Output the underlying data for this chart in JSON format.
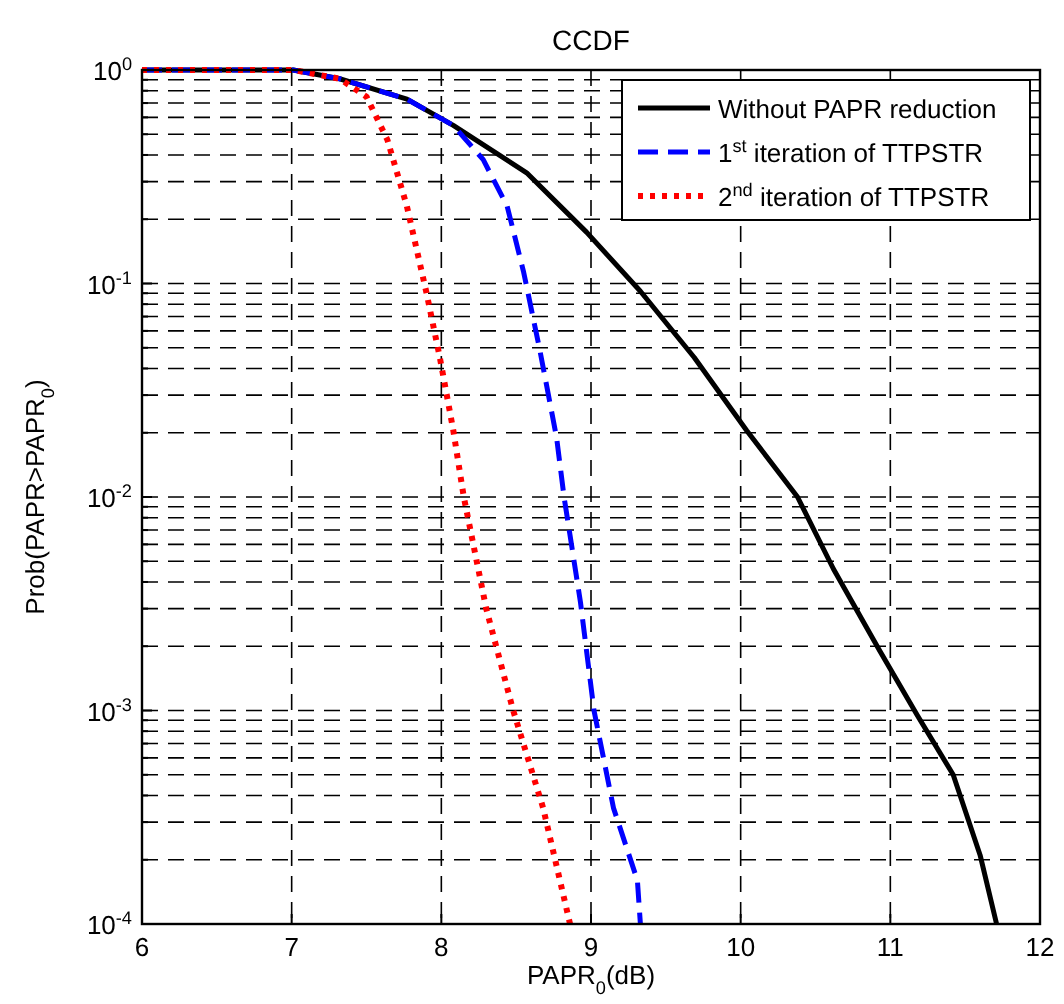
{
  "chart_data": {
    "type": "line",
    "title": "CCDF",
    "xlabel": "PAPR$_{0}$(dB)",
    "ylabel": "Prob(PAPR>PAPR$_{0}$)",
    "log": "y",
    "grid": true,
    "legend": "top right",
    "xlim": [
      6,
      12
    ],
    "xticks": [
      6,
      7,
      8,
      9,
      10,
      11,
      12
    ],
    "ylim": [
      0.0001,
      1
    ],
    "yticks": [
      {
        "value": 0.0001,
        "label": "10$^{-4}$"
      },
      {
        "value": 0.0002,
        "label": null
      },
      {
        "value": 0.0003,
        "label": null
      },
      {
        "value": 0.0004,
        "label": null
      },
      {
        "value": 0.0005,
        "label": null
      },
      {
        "value": 0.0006,
        "label": null
      },
      {
        "value": 0.0007,
        "label": null
      },
      {
        "value": 0.0008,
        "label": null
      },
      {
        "value": 0.0009,
        "label": null
      },
      {
        "value": 0.001,
        "label": "10$^{-3}$"
      },
      {
        "value": 0.002,
        "label": null
      },
      {
        "value": 0.003,
        "label": null
      },
      {
        "value": 0.004,
        "label": null
      },
      {
        "value": 0.005,
        "label": null
      },
      {
        "value": 0.006,
        "label": null
      },
      {
        "value": 0.007,
        "label": null
      },
      {
        "value": 0.008,
        "label": null
      },
      {
        "value": 0.009,
        "label": null
      },
      {
        "value": 0.01,
        "label": "10$^{-2}$"
      },
      {
        "value": 0.02,
        "label": null
      },
      {
        "value": 0.03,
        "label": null
      },
      {
        "value": 0.04,
        "label": null
      },
      {
        "value": 0.05,
        "label": null
      },
      {
        "value": 0.06,
        "label": null
      },
      {
        "value": 0.07,
        "label": null
      },
      {
        "value": 0.08,
        "label": null
      },
      {
        "value": 0.09,
        "label": null
      },
      {
        "value": 0.1,
        "label": "10$^{-1}$"
      },
      {
        "value": 0.2,
        "label": null
      },
      {
        "value": 0.3,
        "label": null
      },
      {
        "value": 0.4,
        "label": null
      },
      {
        "value": 0.5,
        "label": null
      },
      {
        "value": 0.6,
        "label": null
      },
      {
        "value": 0.7,
        "label": null
      },
      {
        "value": 0.8,
        "label": null
      },
      {
        "value": 0.9,
        "label": null
      },
      {
        "value": 1,
        "label": "10$^{0}$"
      }
    ],
    "series": [
      {
        "name": "Without PAPR reduction",
        "color": "#000000",
        "line_style": "solid",
        "x": [
          6,
          7.01,
          7.32,
          7.77,
          8.08,
          8.57,
          8.97,
          9.33,
          9.69,
          10.04,
          10.38,
          10.62,
          10.93,
          11.18,
          11.42,
          11.6,
          11.71
        ],
        "values": [
          1,
          1,
          0.91,
          0.73,
          0.55,
          0.33,
          0.174,
          0.092,
          0.045,
          0.0205,
          0.01,
          0.0046,
          0.0019,
          0.00095,
          0.0005,
          0.00021,
          0.0001
        ]
      },
      {
        "name": "1$^{st}$ iteration of TTPSTR",
        "color": "#0000ff",
        "line_style": "dashed",
        "x": [
          6,
          7.01,
          7.32,
          7.77,
          8.08,
          8.28,
          8.44,
          8.55,
          8.66,
          8.77,
          8.82,
          8.93,
          9.02,
          9.15,
          9.31,
          9.33
        ],
        "values": [
          1,
          1,
          0.91,
          0.73,
          0.55,
          0.38,
          0.23,
          0.113,
          0.048,
          0.019,
          0.01,
          0.0032,
          0.001,
          0.00035,
          0.00016,
          0.0001
        ]
      },
      {
        "name": "2$^{nd}$ iteration of TTPSTR",
        "color": "#ff0000",
        "line_style": "dotted",
        "x": [
          6,
          7.01,
          7.32,
          7.5,
          7.64,
          7.77,
          7.9,
          7.99,
          8.08,
          8.15,
          8.3,
          8.48,
          8.68,
          8.86
        ],
        "values": [
          1,
          1,
          0.91,
          0.75,
          0.47,
          0.23,
          0.091,
          0.045,
          0.0205,
          0.01,
          0.003,
          0.001,
          0.00035,
          0.0001
        ]
      }
    ]
  }
}
